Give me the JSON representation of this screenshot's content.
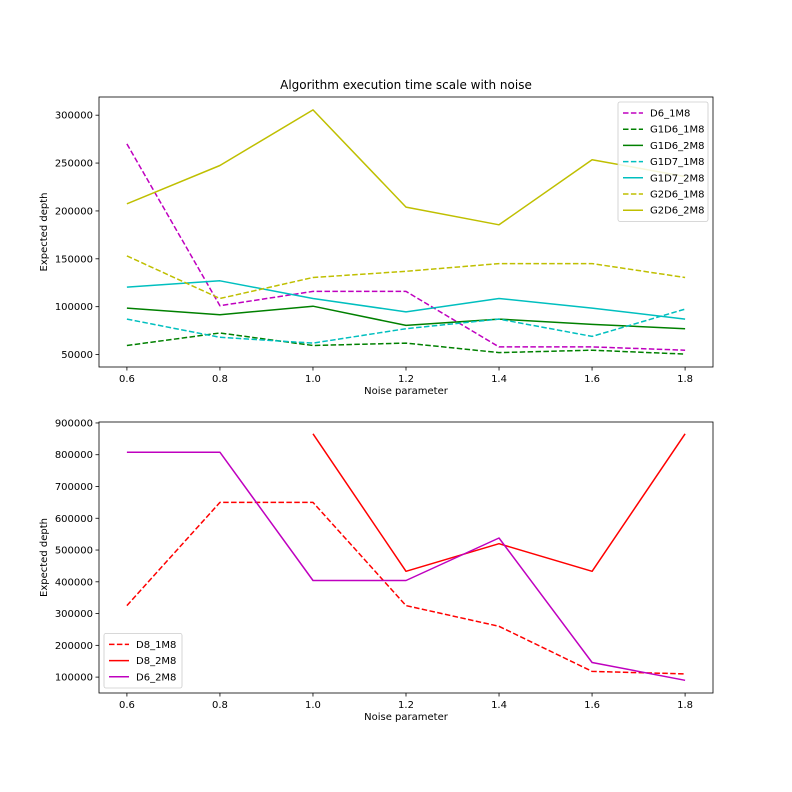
{
  "chart_data": [
    {
      "type": "line",
      "title": "Algorithm execution time scale with noise",
      "xlabel": "Noise parameter",
      "ylabel": "Expected depth",
      "x": [
        0.6,
        0.8,
        1.0,
        1.2,
        1.4,
        1.6,
        1.8
      ],
      "xlim": [
        0.54,
        1.86
      ],
      "ylim": [
        37000,
        319000
      ],
      "xticks": [
        "0.6",
        "0.8",
        "1.0",
        "1.2",
        "1.4",
        "1.6",
        "1.8"
      ],
      "yticks": [
        50000,
        100000,
        150000,
        200000,
        250000,
        300000
      ],
      "ytick_labels": [
        "50000",
        "100000",
        "150000",
        "200000",
        "250000",
        "300000"
      ],
      "legend_position": "top-right",
      "grid": false,
      "series": [
        {
          "name": "D6_1M8",
          "color": "#bf00bf",
          "style": "dashed",
          "values": [
            270000,
            101000,
            116000,
            116000,
            58000,
            58000,
            54500
          ]
        },
        {
          "name": "G1D6_1M8",
          "color": "#008000",
          "style": "dashed",
          "values": [
            59500,
            72500,
            59500,
            62000,
            52000,
            54500,
            50500
          ]
        },
        {
          "name": "G1D6_2M8",
          "color": "#008000",
          "style": "solid",
          "values": [
            98500,
            91500,
            100500,
            80500,
            87000,
            81500,
            77000
          ]
        },
        {
          "name": "G1D7_1M8",
          "color": "#00bfbf",
          "style": "dashed",
          "values": [
            87000,
            68000,
            62000,
            77000,
            87000,
            69000,
            97500
          ]
        },
        {
          "name": "G1D7_2M8",
          "color": "#00bfbf",
          "style": "solid",
          "values": [
            120500,
            127000,
            108500,
            94500,
            108500,
            98500,
            87000
          ]
        },
        {
          "name": "G2D6_1M8",
          "color": "#bfbf00",
          "style": "dashed",
          "values": [
            153000,
            108500,
            130500,
            137000,
            145000,
            145000,
            130500
          ]
        },
        {
          "name": "G2D6_2M8",
          "color": "#bfbf00",
          "style": "solid",
          "values": [
            207500,
            247500,
            305500,
            204000,
            185500,
            253500,
            236000
          ]
        }
      ]
    },
    {
      "type": "line",
      "title": "",
      "xlabel": "Noise parameter",
      "ylabel": "Expected depth",
      "x": [
        0.6,
        0.8,
        1.0,
        1.2,
        1.4,
        1.6,
        1.8
      ],
      "xlim": [
        0.54,
        1.86
      ],
      "ylim": [
        50000,
        903000
      ],
      "xticks": [
        "0.6",
        "0.8",
        "1.0",
        "1.2",
        "1.4",
        "1.6",
        "1.8"
      ],
      "yticks": [
        100000,
        200000,
        300000,
        400000,
        500000,
        600000,
        700000,
        800000,
        900000
      ],
      "ytick_labels": [
        "100000",
        "200000",
        "300000",
        "400000",
        "500000",
        "600000",
        "700000",
        "800000",
        "900000"
      ],
      "legend_position": "bottom-left",
      "grid": false,
      "series": [
        {
          "name": "D8_1M8",
          "color": "#ff0000",
          "style": "dashed",
          "values": [
            325000,
            650000,
            650000,
            325000,
            260000,
            118000,
            110000
          ]
        },
        {
          "name": "D8_2M8",
          "color": "#ff0000",
          "style": "solid",
          "values": [
            null,
            null,
            866000,
            433000,
            520000,
            433000,
            866000
          ]
        },
        {
          "name": "D6_2M8",
          "color": "#bf00bf",
          "style": "solid",
          "values": [
            808000,
            808000,
            404000,
            404000,
            538000,
            146000,
            90000
          ]
        }
      ]
    }
  ]
}
